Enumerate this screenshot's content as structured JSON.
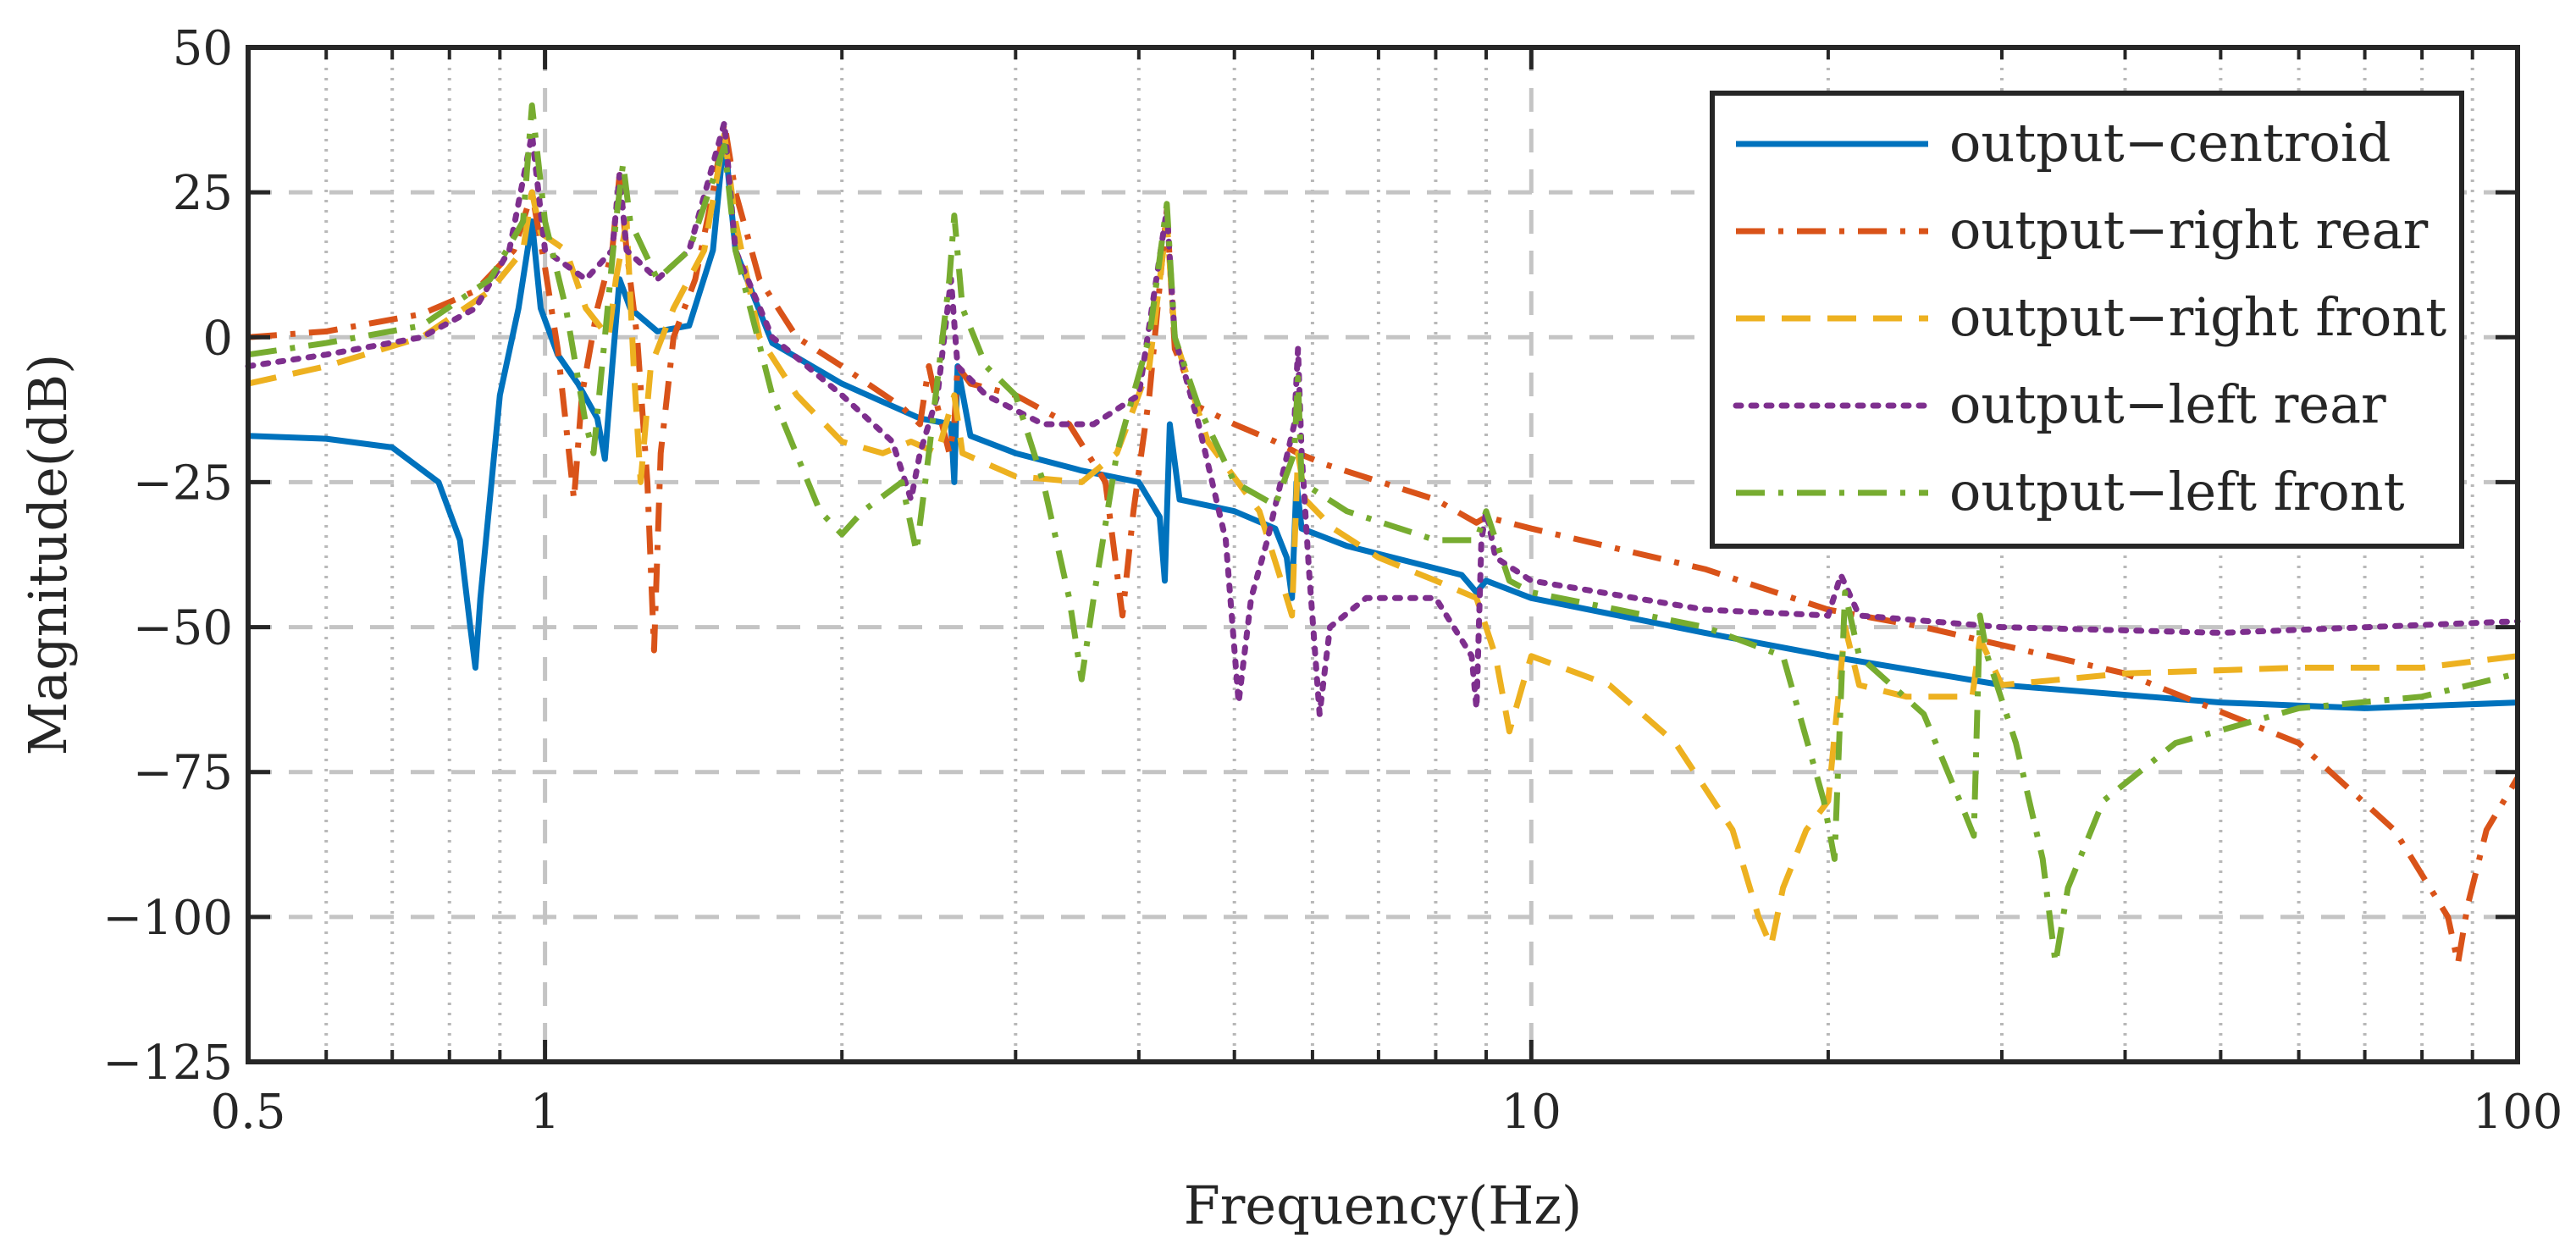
{
  "chart_data": {
    "type": "line",
    "xscale": "log",
    "xlabel": "Frequency(Hz)",
    "ylabel": "Magnitude(dB)",
    "xlim": [
      0.5,
      100
    ],
    "ylim": [
      -125,
      50
    ],
    "grid": true,
    "legend_position": "top-right",
    "x_ticks": [
      0.5,
      1,
      10,
      100
    ],
    "x_tick_labels": [
      "0.5",
      "1",
      "10",
      "100"
    ],
    "y_ticks": [
      50,
      25,
      0,
      -25,
      -50,
      -75,
      -100,
      -125
    ],
    "y_tick_labels": [
      "50",
      "25",
      "0",
      "−25",
      "−50",
      "−75",
      "−100",
      "−125"
    ],
    "series": [
      {
        "name": "output−centroid",
        "color": "#0072BD",
        "dash": "solid",
        "points": [
          [
            0.5,
            -17
          ],
          [
            0.6,
            -17.5
          ],
          [
            0.7,
            -19
          ],
          [
            0.78,
            -25
          ],
          [
            0.82,
            -35
          ],
          [
            0.84,
            -50
          ],
          [
            0.85,
            -57
          ],
          [
            0.86,
            -45
          ],
          [
            0.9,
            -10
          ],
          [
            0.94,
            5
          ],
          [
            0.97,
            20
          ],
          [
            0.99,
            5
          ],
          [
            1.03,
            -3
          ],
          [
            1.08,
            -8
          ],
          [
            1.13,
            -14
          ],
          [
            1.15,
            -21
          ],
          [
            1.17,
            -5
          ],
          [
            1.19,
            10
          ],
          [
            1.22,
            5
          ],
          [
            1.3,
            1
          ],
          [
            1.4,
            2
          ],
          [
            1.48,
            15
          ],
          [
            1.52,
            35
          ],
          [
            1.56,
            15
          ],
          [
            1.7,
            -1
          ],
          [
            2,
            -8
          ],
          [
            2.4,
            -14
          ],
          [
            2.58,
            -15
          ],
          [
            2.6,
            -25
          ],
          [
            2.62,
            -5
          ],
          [
            2.7,
            -17
          ],
          [
            3,
            -20
          ],
          [
            3.5,
            -23
          ],
          [
            4,
            -25
          ],
          [
            4.2,
            -31
          ],
          [
            4.25,
            -42
          ],
          [
            4.3,
            -15
          ],
          [
            4.4,
            -28
          ],
          [
            5,
            -30
          ],
          [
            5.5,
            -33
          ],
          [
            5.65,
            -38
          ],
          [
            5.72,
            -45
          ],
          [
            5.78,
            -25
          ],
          [
            5.85,
            -33
          ],
          [
            6.5,
            -36
          ],
          [
            8.5,
            -41
          ],
          [
            8.8,
            -44
          ],
          [
            9,
            -42
          ],
          [
            10,
            -45
          ],
          [
            15,
            -51
          ],
          [
            20,
            -55
          ],
          [
            30,
            -60
          ],
          [
            50,
            -63
          ],
          [
            70,
            -64
          ],
          [
            100,
            -63
          ]
        ]
      },
      {
        "name": "output−right rear",
        "color": "#D95319",
        "dash": "dashdot",
        "points": [
          [
            0.5,
            0
          ],
          [
            0.6,
            1
          ],
          [
            0.75,
            4
          ],
          [
            0.85,
            8
          ],
          [
            0.93,
            15
          ],
          [
            0.97,
            25
          ],
          [
            1.0,
            12
          ],
          [
            1.03,
            -2
          ],
          [
            1.05,
            -15
          ],
          [
            1.07,
            -28
          ],
          [
            1.09,
            -10
          ],
          [
            1.13,
            5
          ],
          [
            1.17,
            15
          ],
          [
            1.19,
            28
          ],
          [
            1.21,
            15
          ],
          [
            1.24,
            0
          ],
          [
            1.27,
            -25
          ],
          [
            1.29,
            -54
          ],
          [
            1.31,
            -20
          ],
          [
            1.35,
            0
          ],
          [
            1.42,
            10
          ],
          [
            1.48,
            25
          ],
          [
            1.52,
            37
          ],
          [
            1.56,
            25
          ],
          [
            1.65,
            10
          ],
          [
            1.8,
            0
          ],
          [
            2,
            -5
          ],
          [
            2.3,
            -12
          ],
          [
            2.4,
            -15
          ],
          [
            2.45,
            -5
          ],
          [
            2.5,
            -12
          ],
          [
            2.57,
            -20
          ],
          [
            2.6,
            -15
          ],
          [
            2.62,
            -5
          ],
          [
            2.7,
            -8
          ],
          [
            3,
            -10
          ],
          [
            3.4,
            -15
          ],
          [
            3.7,
            -25
          ],
          [
            3.85,
            -48
          ],
          [
            3.95,
            -30
          ],
          [
            4.1,
            -10
          ],
          [
            4.27,
            22
          ],
          [
            4.35,
            -2
          ],
          [
            4.6,
            -12
          ],
          [
            5,
            -15
          ],
          [
            5.5,
            -18
          ],
          [
            5.8,
            -20
          ],
          [
            6.2,
            -22
          ],
          [
            8,
            -28
          ],
          [
            8.8,
            -32
          ],
          [
            9,
            -31
          ],
          [
            10,
            -33
          ],
          [
            15,
            -40
          ],
          [
            20,
            -47
          ],
          [
            25,
            -50
          ],
          [
            40,
            -58
          ],
          [
            60,
            -70
          ],
          [
            75,
            -85
          ],
          [
            85,
            -100
          ],
          [
            87,
            -108
          ],
          [
            89,
            -98
          ],
          [
            93,
            -85
          ],
          [
            100,
            -76
          ]
        ]
      },
      {
        "name": "output−right front",
        "color": "#EDB120",
        "dash": "dashed",
        "points": [
          [
            0.5,
            -8
          ],
          [
            0.6,
            -5
          ],
          [
            0.75,
            0
          ],
          [
            0.88,
            8
          ],
          [
            0.95,
            15
          ],
          [
            0.97,
            25
          ],
          [
            0.99,
            18
          ],
          [
            1.05,
            15
          ],
          [
            1.1,
            5
          ],
          [
            1.16,
            0
          ],
          [
            1.18,
            10
          ],
          [
            1.21,
            20
          ],
          [
            1.23,
            -5
          ],
          [
            1.25,
            -25
          ],
          [
            1.28,
            -5
          ],
          [
            1.35,
            5
          ],
          [
            1.45,
            15
          ],
          [
            1.52,
            35
          ],
          [
            1.56,
            20
          ],
          [
            1.65,
            0
          ],
          [
            1.8,
            -10
          ],
          [
            2,
            -18
          ],
          [
            2.2,
            -20
          ],
          [
            2.35,
            -18
          ],
          [
            2.5,
            -20
          ],
          [
            2.6,
            -10
          ],
          [
            2.65,
            -20
          ],
          [
            3,
            -24
          ],
          [
            3.5,
            -25
          ],
          [
            3.8,
            -20
          ],
          [
            4.1,
            -5
          ],
          [
            4.27,
            20
          ],
          [
            4.35,
            0
          ],
          [
            4.7,
            -18
          ],
          [
            5.3,
            -30
          ],
          [
            5.65,
            -45
          ],
          [
            5.72,
            -48
          ],
          [
            5.8,
            -20
          ],
          [
            5.9,
            -28
          ],
          [
            6.3,
            -33
          ],
          [
            7,
            -38
          ],
          [
            8,
            -42
          ],
          [
            8.8,
            -45
          ],
          [
            9.2,
            -55
          ],
          [
            9.5,
            -68
          ],
          [
            9.8,
            -60
          ],
          [
            10,
            -55
          ],
          [
            12,
            -60
          ],
          [
            14,
            -70
          ],
          [
            16,
            -85
          ],
          [
            17,
            -100
          ],
          [
            17.5,
            -105
          ],
          [
            18,
            -95
          ],
          [
            19,
            -85
          ],
          [
            20,
            -80
          ],
          [
            20.8,
            -50
          ],
          [
            21.5,
            -60
          ],
          [
            24,
            -62
          ],
          [
            28,
            -62
          ],
          [
            28.5,
            -52
          ],
          [
            30,
            -60
          ],
          [
            40,
            -58
          ],
          [
            60,
            -57
          ],
          [
            80,
            -57
          ],
          [
            100,
            -55
          ]
        ]
      },
      {
        "name": "output−left rear",
        "color": "#7E2F8E",
        "dash": "dotted",
        "points": [
          [
            0.5,
            -5
          ],
          [
            0.6,
            -3
          ],
          [
            0.75,
            0
          ],
          [
            0.85,
            5
          ],
          [
            0.92,
            15
          ],
          [
            0.97,
            35
          ],
          [
            1.0,
            15
          ],
          [
            1.1,
            10
          ],
          [
            1.17,
            15
          ],
          [
            1.19,
            28
          ],
          [
            1.21,
            15
          ],
          [
            1.3,
            10
          ],
          [
            1.4,
            15
          ],
          [
            1.52,
            37
          ],
          [
            1.56,
            15
          ],
          [
            1.7,
            0
          ],
          [
            2,
            -10
          ],
          [
            2.25,
            -18
          ],
          [
            2.35,
            -28
          ],
          [
            2.4,
            -20
          ],
          [
            2.5,
            -10
          ],
          [
            2.58,
            10
          ],
          [
            2.62,
            -5
          ],
          [
            2.8,
            -10
          ],
          [
            3.2,
            -15
          ],
          [
            3.6,
            -15
          ],
          [
            4,
            -10
          ],
          [
            4.27,
            22
          ],
          [
            4.35,
            0
          ],
          [
            4.6,
            -15
          ],
          [
            4.9,
            -35
          ],
          [
            5.05,
            -63
          ],
          [
            5.2,
            -45
          ],
          [
            5.4,
            -35
          ],
          [
            5.75,
            -15
          ],
          [
            5.8,
            -2
          ],
          [
            5.85,
            -20
          ],
          [
            5.95,
            -40
          ],
          [
            6.1,
            -65
          ],
          [
            6.25,
            -50
          ],
          [
            6.8,
            -45
          ],
          [
            8,
            -45
          ],
          [
            8.7,
            -55
          ],
          [
            8.8,
            -64
          ],
          [
            8.9,
            -35
          ],
          [
            9,
            -30
          ],
          [
            9.2,
            -38
          ],
          [
            10,
            -42
          ],
          [
            15,
            -47
          ],
          [
            20,
            -48
          ],
          [
            20.6,
            -41
          ],
          [
            21.5,
            -48
          ],
          [
            30,
            -50
          ],
          [
            50,
            -51
          ],
          [
            100,
            -49
          ]
        ]
      },
      {
        "name": "output−left front",
        "color": "#77AC30",
        "dash": "dashdot",
        "points": [
          [
            0.5,
            -3
          ],
          [
            0.6,
            -1
          ],
          [
            0.75,
            2
          ],
          [
            0.88,
            10
          ],
          [
            0.95,
            20
          ],
          [
            0.97,
            40
          ],
          [
            1.0,
            20
          ],
          [
            1.05,
            5
          ],
          [
            1.1,
            -15
          ],
          [
            1.12,
            -20
          ],
          [
            1.15,
            0
          ],
          [
            1.18,
            20
          ],
          [
            1.2,
            30
          ],
          [
            1.22,
            20
          ],
          [
            1.3,
            10
          ],
          [
            1.4,
            15
          ],
          [
            1.52,
            33
          ],
          [
            1.56,
            15
          ],
          [
            1.7,
            -10
          ],
          [
            1.9,
            -30
          ],
          [
            2.0,
            -34
          ],
          [
            2.1,
            -30
          ],
          [
            2.3,
            -25
          ],
          [
            2.38,
            -37
          ],
          [
            2.45,
            -20
          ],
          [
            2.57,
            10
          ],
          [
            2.6,
            21
          ],
          [
            2.65,
            5
          ],
          [
            2.8,
            -5
          ],
          [
            3,
            -10
          ],
          [
            3.2,
            -25
          ],
          [
            3.4,
            -45
          ],
          [
            3.5,
            -59
          ],
          [
            3.6,
            -45
          ],
          [
            3.8,
            -20
          ],
          [
            4.1,
            0
          ],
          [
            4.27,
            23
          ],
          [
            4.35,
            0
          ],
          [
            4.6,
            -12
          ],
          [
            5,
            -25
          ],
          [
            5.5,
            -29
          ],
          [
            5.75,
            -20
          ],
          [
            5.8,
            -7
          ],
          [
            5.85,
            -25
          ],
          [
            6.5,
            -30
          ],
          [
            8,
            -35
          ],
          [
            8.8,
            -35
          ],
          [
            9,
            -30
          ],
          [
            9.5,
            -42
          ],
          [
            10,
            -44
          ],
          [
            15,
            -50
          ],
          [
            18,
            -55
          ],
          [
            19.8,
            -80
          ],
          [
            20.3,
            -90
          ],
          [
            20.8,
            -44
          ],
          [
            21.5,
            -55
          ],
          [
            25,
            -65
          ],
          [
            27.5,
            -82
          ],
          [
            28.1,
            -86
          ],
          [
            28.5,
            -48
          ],
          [
            29,
            -55
          ],
          [
            31,
            -70
          ],
          [
            33,
            -90
          ],
          [
            34,
            -108
          ],
          [
            35,
            -95
          ],
          [
            38,
            -80
          ],
          [
            45,
            -70
          ],
          [
            60,
            -64
          ],
          [
            80,
            -62
          ],
          [
            100,
            -58
          ]
        ]
      }
    ]
  }
}
